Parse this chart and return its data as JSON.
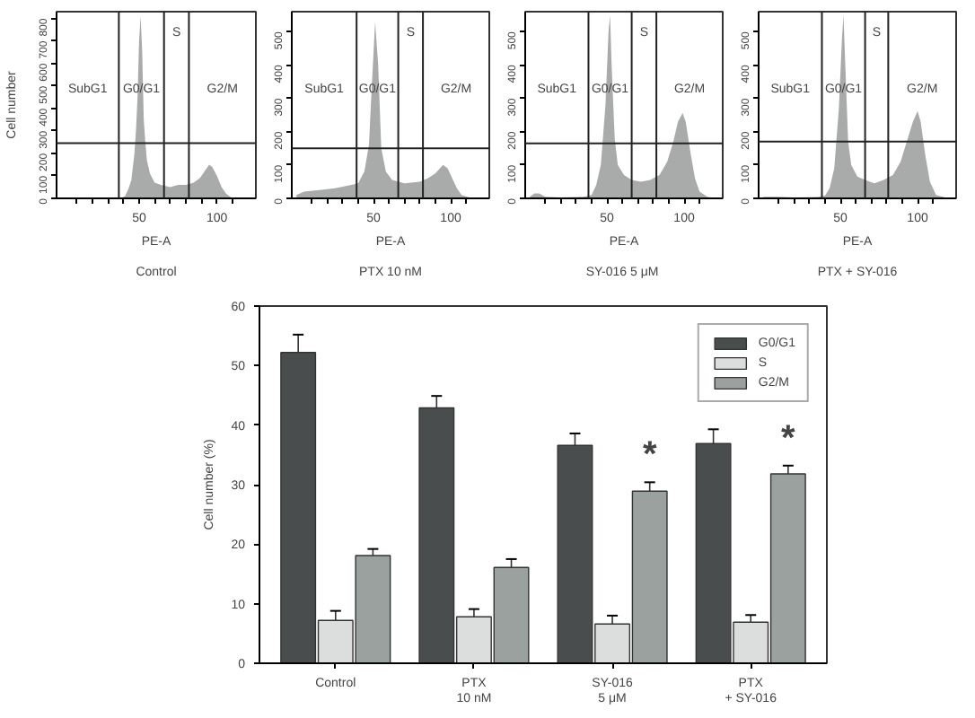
{
  "chart_data": [
    {
      "type": "area",
      "title": "Control",
      "xlabel": "PE-A",
      "ylabel": "Cell number",
      "color": "#a9abaa",
      "xlim": [
        -3,
        125
      ],
      "ylim": [
        0,
        830
      ],
      "xticks": [
        {
          "value": 10,
          "label": null
        },
        {
          "value": 20,
          "label": null
        },
        {
          "value": 30,
          "label": null
        },
        {
          "value": 40,
          "label": null
        },
        50,
        {
          "value": 60,
          "label": null
        },
        {
          "value": 70,
          "label": null
        },
        {
          "value": 80,
          "label": null
        },
        {
          "value": 90,
          "label": null
        },
        100,
        {
          "value": 110,
          "label": null
        }
      ],
      "yticks": [
        0,
        100,
        200,
        300,
        400,
        500,
        600,
        700,
        800
      ],
      "grid": false,
      "x": [
        0,
        10,
        20,
        30,
        38,
        41,
        43,
        45,
        47,
        48,
        49,
        50,
        51,
        52,
        53,
        54,
        55,
        57,
        60,
        64,
        70,
        75,
        80,
        85,
        89,
        92,
        95,
        97,
        100,
        103,
        106,
        110,
        120
      ],
      "values": [
        0,
        0,
        0,
        0,
        0,
        10,
        40,
        80,
        200,
        300,
        450,
        700,
        810,
        650,
        350,
        250,
        170,
        110,
        70,
        60,
        50,
        60,
        60,
        70,
        90,
        120,
        150,
        140,
        100,
        50,
        20,
        0,
        0
      ],
      "ref_lines": [
        {
          "axis": "x",
          "value": 37
        },
        {
          "axis": "x",
          "value": 66
        },
        {
          "axis": "x",
          "value": 82
        },
        {
          "axis": "y",
          "value": 245
        }
      ],
      "annotations": [
        "SubG1",
        "G0/G1",
        "S",
        "G2/M"
      ]
    },
    {
      "type": "area",
      "title": "PTX 10 nM",
      "xlabel": "PE-A",
      "color": "#a9abaa",
      "xlim": [
        -3,
        125
      ],
      "ylim": [
        0,
        560
      ],
      "xticks": [
        {
          "value": 10,
          "label": null
        },
        {
          "value": 20,
          "label": null
        },
        {
          "value": 30,
          "label": null
        },
        {
          "value": 40,
          "label": null
        },
        50,
        {
          "value": 60,
          "label": null
        },
        {
          "value": 70,
          "label": null
        },
        {
          "value": 80,
          "label": null
        },
        {
          "value": 90,
          "label": null
        },
        100,
        {
          "value": 110,
          "label": null
        }
      ],
      "yticks": [
        0,
        100,
        200,
        300,
        400,
        500
      ],
      "grid": false,
      "x": [
        0,
        5,
        15,
        25,
        35,
        40,
        44,
        47,
        49,
        51,
        53,
        55,
        58,
        62,
        70,
        80,
        85,
        90,
        95,
        98,
        101,
        104,
        107,
        112,
        120
      ],
      "values": [
        10,
        20,
        25,
        30,
        40,
        45,
        80,
        160,
        350,
        530,
        400,
        150,
        80,
        55,
        45,
        50,
        60,
        75,
        100,
        90,
        60,
        30,
        10,
        3,
        0
      ],
      "ref_lines": [
        {
          "axis": "x",
          "value": 39
        },
        {
          "axis": "x",
          "value": 66
        },
        {
          "axis": "x",
          "value": 82
        },
        {
          "axis": "y",
          "value": 150
        }
      ],
      "annotations": [
        "SubG1",
        "G0/G1",
        "S",
        "G2/M"
      ]
    },
    {
      "type": "area",
      "title": "SY-016  5 μM",
      "xlabel": "PE-A",
      "color": "#a9abaa",
      "xlim": [
        -3,
        125
      ],
      "ylim": [
        0,
        560
      ],
      "xticks": [
        {
          "value": 10,
          "label": null
        },
        {
          "value": 20,
          "label": null
        },
        {
          "value": 30,
          "label": null
        },
        {
          "value": 40,
          "label": null
        },
        50,
        {
          "value": 60,
          "label": null
        },
        {
          "value": 70,
          "label": null
        },
        {
          "value": 80,
          "label": null
        },
        {
          "value": 90,
          "label": null
        },
        100,
        {
          "value": 110,
          "label": null
        }
      ],
      "yticks": [
        0,
        100,
        200,
        300,
        400,
        500
      ],
      "grid": false,
      "x": [
        0,
        3,
        6,
        10,
        20,
        35,
        40,
        43,
        46,
        49,
        51,
        52,
        53,
        55,
        57,
        61,
        66,
        72,
        78,
        84,
        89,
        93,
        96,
        99,
        101,
        104,
        107,
        110,
        115,
        120
      ],
      "values": [
        5,
        15,
        15,
        5,
        3,
        5,
        10,
        40,
        100,
        280,
        500,
        550,
        400,
        180,
        100,
        70,
        55,
        50,
        55,
        70,
        110,
        170,
        230,
        256,
        230,
        140,
        60,
        20,
        5,
        0
      ],
      "ref_lines": [
        {
          "axis": "x",
          "value": 38
        },
        {
          "axis": "x",
          "value": 66
        },
        {
          "axis": "x",
          "value": 82
        },
        {
          "axis": "y",
          "value": 165
        }
      ],
      "annotations": [
        "SubG1",
        "G0/G1",
        "S",
        "G2/M"
      ]
    },
    {
      "type": "area",
      "title": "PTX + SY-016",
      "xlabel": "PE-A",
      "color": "#a9abaa",
      "xlim": [
        -3,
        125
      ],
      "ylim": [
        0,
        560
      ],
      "xticks": [
        {
          "value": 10,
          "label": null
        },
        {
          "value": 20,
          "label": null
        },
        {
          "value": 30,
          "label": null
        },
        {
          "value": 40,
          "label": null
        },
        50,
        {
          "value": 60,
          "label": null
        },
        {
          "value": 70,
          "label": null
        },
        {
          "value": 80,
          "label": null
        },
        {
          "value": 90,
          "label": null
        },
        100,
        {
          "value": 110,
          "label": null
        }
      ],
      "yticks": [
        0,
        100,
        200,
        300,
        400,
        500
      ],
      "grid": false,
      "x": [
        0,
        10,
        20,
        35,
        40,
        43,
        46,
        49,
        51,
        52,
        53,
        55,
        57,
        61,
        66,
        72,
        78,
        84,
        89,
        93,
        97,
        100,
        102,
        105,
        108,
        112,
        120
      ],
      "values": [
        5,
        5,
        3,
        4,
        8,
        30,
        90,
        270,
        480,
        550,
        420,
        170,
        100,
        65,
        55,
        45,
        55,
        70,
        110,
        170,
        230,
        262,
        230,
        130,
        50,
        10,
        0
      ],
      "ref_lines": [
        {
          "axis": "x",
          "value": 38
        },
        {
          "axis": "x",
          "value": 66
        },
        {
          "axis": "x",
          "value": 81
        },
        {
          "axis": "y",
          "value": 170
        }
      ],
      "annotations": [
        "SubG1",
        "G0/G1",
        "S",
        "G2/M"
      ]
    },
    {
      "type": "bar",
      "ylabel": "Cell number (%)",
      "categories": [
        "Control",
        "PTX\n10 nM",
        "SY-016\n5 μM",
        "PTX\n+ SY-016"
      ],
      "ylim": [
        0,
        60
      ],
      "yticks": [
        0,
        10,
        20,
        30,
        40,
        50,
        60
      ],
      "grid": false,
      "legend": "top right",
      "series": [
        {
          "name": "G0/G1",
          "color": "#4a4d4d",
          "values": [
            52.2,
            42.9,
            36.6,
            36.9
          ],
          "errors": [
            3,
            2,
            2,
            2.4
          ]
        },
        {
          "name": "S",
          "color": "#dcdedd",
          "values": [
            7.2,
            7.8,
            6.6,
            6.9
          ],
          "errors": [
            1.6,
            1.3,
            1.4,
            1.2
          ]
        },
        {
          "name": "G2/M",
          "color": "#9aa19f",
          "values": [
            18.1,
            16.1,
            28.9,
            31.8
          ],
          "errors": [
            1.1,
            1.4,
            1.5,
            1.4
          ]
        }
      ],
      "annotations": [
        "*",
        "*"
      ]
    }
  ]
}
